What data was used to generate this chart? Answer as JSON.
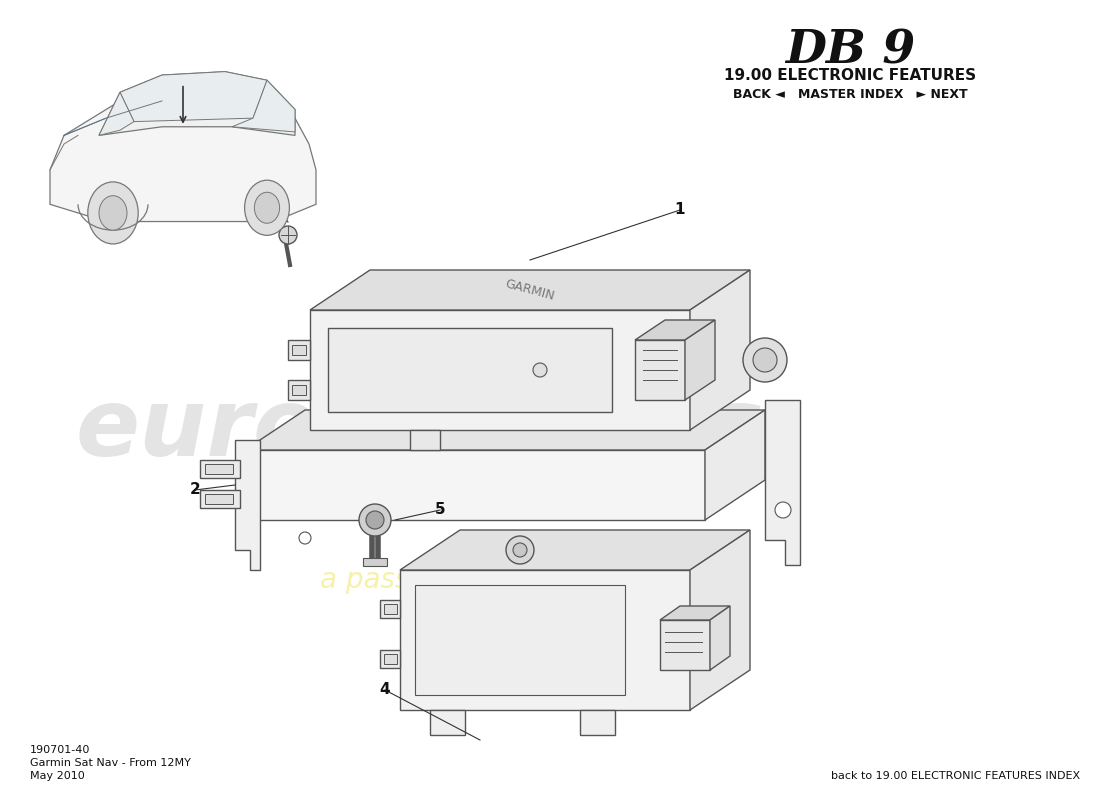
{
  "title_model": "DB 9",
  "title_section": "19.00 ELECTRONIC FEATURES",
  "title_nav": "BACK ◄   MASTER INDEX   ► NEXT",
  "bottom_left_line1": "190701-40",
  "bottom_left_line2": "Garmin Sat Nav - From 12MY",
  "bottom_left_line3": "May 2010",
  "bottom_right": "back to 19.00 ELECTRONIC FEATURES INDEX",
  "bg_color": "#ffffff",
  "line_color": "#555555",
  "wm_color1": "#e0e0e0",
  "wm_color2": "#f5f0a0",
  "label_color": "#111111"
}
